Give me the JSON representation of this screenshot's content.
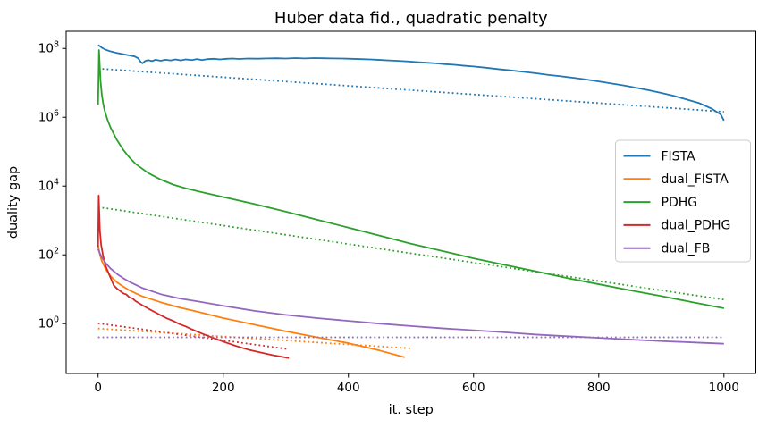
{
  "chart_data": {
    "type": "line",
    "title": "Huber data fid., quadratic penalty",
    "xlabel": "it. step",
    "ylabel": "duality gap",
    "x_scale": "linear",
    "y_scale": "log",
    "xlim": [
      -51,
      1051
    ],
    "ylim_log10": [
      -1.45,
      8.5
    ],
    "x_ticks": [
      0,
      200,
      400,
      600,
      800,
      1000
    ],
    "y_tick_base": "10",
    "y_tick_exponents": [
      8,
      6,
      4,
      2,
      0
    ],
    "grid": false,
    "legend_position": "center right",
    "legend_entries": [
      {
        "label": "FISTA",
        "color": "#1f77b4"
      },
      {
        "label": "dual_FISTA",
        "color": "#ff7f0e"
      },
      {
        "label": "PDHG",
        "color": "#2ca02c"
      },
      {
        "label": "dual_PDHG",
        "color": "#d62728"
      },
      {
        "label": "dual_FB",
        "color": "#9467bd"
      }
    ],
    "series": [
      {
        "id": "fista-line",
        "name": "FISTA",
        "color": "#1f77b4",
        "style": "solid",
        "points": [
          [
            0,
            125000000.0
          ],
          [
            2,
            120000000.0
          ],
          [
            6,
            105000000.0
          ],
          [
            12,
            92000000.0
          ],
          [
            20,
            82000000.0
          ],
          [
            30,
            74000000.0
          ],
          [
            40,
            68000000.0
          ],
          [
            50,
            63000000.0
          ],
          [
            58,
            59000000.0
          ],
          [
            64,
            52000000.0
          ],
          [
            68,
            41000000.0
          ],
          [
            71,
            37000000.0
          ],
          [
            75,
            43000000.0
          ],
          [
            80,
            46000000.0
          ],
          [
            86,
            43000000.0
          ],
          [
            92,
            47000000.0
          ],
          [
            100,
            44000000.0
          ],
          [
            108,
            47000000.0
          ],
          [
            116,
            45000000.0
          ],
          [
            124,
            48000000.0
          ],
          [
            132,
            45000000.0
          ],
          [
            140,
            48000000.0
          ],
          [
            150,
            46000000.0
          ],
          [
            158,
            49000000.0
          ],
          [
            166,
            46000000.0
          ],
          [
            175,
            49000000.0
          ],
          [
            185,
            50000000.0
          ],
          [
            195,
            48000000.0
          ],
          [
            205,
            50000000.0
          ],
          [
            215,
            51000000.0
          ],
          [
            225,
            49500000.0
          ],
          [
            240,
            51000000.0
          ],
          [
            255,
            50500000.0
          ],
          [
            270,
            51500000.0
          ],
          [
            285,
            52000000.0
          ],
          [
            300,
            51000000.0
          ],
          [
            315,
            52500000.0
          ],
          [
            330,
            51500000.0
          ],
          [
            345,
            52500000.0
          ],
          [
            360,
            52000000.0
          ],
          [
            375,
            51500000.0
          ],
          [
            390,
            51000000.0
          ],
          [
            405,
            50000000.0
          ],
          [
            420,
            49000000.0
          ],
          [
            435,
            48000000.0
          ],
          [
            450,
            46500000.0
          ],
          [
            465,
            45000000.0
          ],
          [
            480,
            43500000.0
          ],
          [
            495,
            42000000.0
          ],
          [
            510,
            40000000.0
          ],
          [
            525,
            38500000.0
          ],
          [
            540,
            37000000.0
          ],
          [
            555,
            35000000.0
          ],
          [
            570,
            33500000.0
          ],
          [
            585,
            31500000.0
          ],
          [
            600,
            30000000.0
          ],
          [
            620,
            27500000.0
          ],
          [
            640,
            25000000.0
          ],
          [
            660,
            23000000.0
          ],
          [
            680,
            21000000.0
          ],
          [
            700,
            19000000.0
          ],
          [
            720,
            17000000.0
          ],
          [
            740,
            15500000.0
          ],
          [
            760,
            14000000.0
          ],
          [
            780,
            12500000.0
          ],
          [
            800,
            11000000.0
          ],
          [
            820,
            9600000.0
          ],
          [
            840,
            8400000.0
          ],
          [
            860,
            7200000.0
          ],
          [
            880,
            6100000.0
          ],
          [
            900,
            5100000.0
          ],
          [
            920,
            4200000.0
          ],
          [
            940,
            3300000.0
          ],
          [
            960,
            2600000.0
          ],
          [
            980,
            1800000.0
          ],
          [
            995,
            1200000.0
          ],
          [
            1000,
            800000.0
          ]
        ]
      },
      {
        "id": "fista-rate-line",
        "name": "FISTA rate",
        "color": "#1f77b4",
        "style": "dotted",
        "points": [
          [
            0,
            26000000.0
          ],
          [
            1000,
            1450000.0
          ]
        ]
      },
      {
        "id": "dual-fista-line",
        "name": "dual_FISTA",
        "color": "#ff7f0e",
        "style": "solid",
        "points": [
          [
            0,
            190
          ],
          [
            3,
            100
          ],
          [
            6,
            66
          ],
          [
            10,
            46
          ],
          [
            15,
            32
          ],
          [
            20,
            24
          ],
          [
            30,
            16
          ],
          [
            40,
            12
          ],
          [
            50,
            9.3
          ],
          [
            70,
            6.3
          ],
          [
            100,
            4.2
          ],
          [
            130,
            2.95
          ],
          [
            160,
            2.2
          ],
          [
            200,
            1.45
          ],
          [
            250,
            0.93
          ],
          [
            300,
            0.6
          ],
          [
            350,
            0.4
          ],
          [
            400,
            0.27
          ],
          [
            450,
            0.165
          ],
          [
            490,
            0.105
          ]
        ]
      },
      {
        "id": "dual-fista-rate-line",
        "name": "dual_FISTA rate",
        "color": "#ff7f0e",
        "style": "dotted",
        "points": [
          [
            0,
            0.72
          ],
          [
            500,
            0.19
          ]
        ]
      },
      {
        "id": "pdhg-line",
        "name": "PDHG",
        "color": "#2ca02c",
        "style": "solid",
        "points": [
          [
            0,
            2300000.0
          ],
          [
            1.5,
            90000000.0
          ],
          [
            4,
            11000000.0
          ],
          [
            6,
            4500000.0
          ],
          [
            8,
            2600000.0
          ],
          [
            10,
            1700000.0
          ],
          [
            15,
            850000.0
          ],
          [
            20,
            500000.0
          ],
          [
            30,
            220000.0
          ],
          [
            40,
            115000.0
          ],
          [
            50,
            68000.0
          ],
          [
            60,
            44000.0
          ],
          [
            80,
            24000.0
          ],
          [
            100,
            15500.0
          ],
          [
            120,
            11000.0
          ],
          [
            140,
            8600.0
          ],
          [
            160,
            7000.0
          ],
          [
            180,
            5800.0
          ],
          [
            200,
            4800.0
          ],
          [
            250,
            3000.0
          ],
          [
            300,
            1800.0
          ],
          [
            350,
            1050.0
          ],
          [
            400,
            620
          ],
          [
            450,
            360
          ],
          [
            500,
            210
          ],
          [
            550,
            130
          ],
          [
            600,
            79
          ],
          [
            650,
            51
          ],
          [
            700,
            33
          ],
          [
            750,
            21
          ],
          [
            800,
            14
          ],
          [
            850,
            9.3
          ],
          [
            900,
            6.3
          ],
          [
            950,
            4.2
          ],
          [
            1000,
            2.8
          ]
        ]
      },
      {
        "id": "pdhg-rate-line",
        "name": "PDHG rate",
        "color": "#2ca02c",
        "style": "dotted",
        "points": [
          [
            0,
            2450.0
          ],
          [
            1000,
            5.0
          ]
        ]
      },
      {
        "id": "dual-pdhg-line",
        "name": "dual_PDHG",
        "color": "#d62728",
        "style": "solid",
        "points": [
          [
            0,
            170
          ],
          [
            1,
            5300
          ],
          [
            3,
            480
          ],
          [
            5,
            190
          ],
          [
            8,
            95
          ],
          [
            12,
            48
          ],
          [
            18,
            26
          ],
          [
            25,
            13
          ],
          [
            30,
            10.5
          ],
          [
            35,
            9.0
          ],
          [
            40,
            7.6
          ],
          [
            45,
            7.1
          ],
          [
            50,
            5.8
          ],
          [
            55,
            5.4
          ],
          [
            60,
            4.5
          ],
          [
            70,
            3.5
          ],
          [
            80,
            2.75
          ],
          [
            90,
            2.2
          ],
          [
            100,
            1.75
          ],
          [
            110,
            1.42
          ],
          [
            120,
            1.2
          ],
          [
            130,
            0.97
          ],
          [
            140,
            0.83
          ],
          [
            150,
            0.68
          ],
          [
            160,
            0.57
          ],
          [
            170,
            0.48
          ],
          [
            180,
            0.41
          ],
          [
            190,
            0.35
          ],
          [
            200,
            0.3
          ],
          [
            220,
            0.225
          ],
          [
            240,
            0.175
          ],
          [
            260,
            0.145
          ],
          [
            280,
            0.12
          ],
          [
            305,
            0.1
          ]
        ]
      },
      {
        "id": "dual-pdhg-rate-line",
        "name": "dual_PDHG rate",
        "color": "#d62728",
        "style": "dotted",
        "points": [
          [
            0,
            1.02
          ],
          [
            305,
            0.18
          ]
        ]
      },
      {
        "id": "dual-fb-line",
        "name": "dual_FB",
        "color": "#9467bd",
        "style": "solid",
        "points": [
          [
            0,
            150
          ],
          [
            3,
            110
          ],
          [
            6,
            85
          ],
          [
            10,
            65
          ],
          [
            15,
            50
          ],
          [
            20,
            40
          ],
          [
            30,
            28
          ],
          [
            40,
            21
          ],
          [
            50,
            16.5
          ],
          [
            70,
            11
          ],
          [
            100,
            7.2
          ],
          [
            130,
            5.4
          ],
          [
            160,
            4.4
          ],
          [
            200,
            3.3
          ],
          [
            250,
            2.35
          ],
          [
            300,
            1.8
          ],
          [
            350,
            1.45
          ],
          [
            400,
            1.2
          ],
          [
            450,
            1.0
          ],
          [
            500,
            0.85
          ],
          [
            550,
            0.73
          ],
          [
            600,
            0.64
          ],
          [
            650,
            0.56
          ],
          [
            700,
            0.48
          ],
          [
            750,
            0.43
          ],
          [
            800,
            0.385
          ],
          [
            850,
            0.345
          ],
          [
            900,
            0.31
          ],
          [
            950,
            0.285
          ],
          [
            1000,
            0.26
          ]
        ]
      },
      {
        "id": "dual-fb-rate-line",
        "name": "dual_FB rate",
        "color": "#9467bd",
        "style": "dotted",
        "points": [
          [
            0,
            0.4
          ],
          [
            1000,
            0.4
          ]
        ]
      }
    ]
  }
}
